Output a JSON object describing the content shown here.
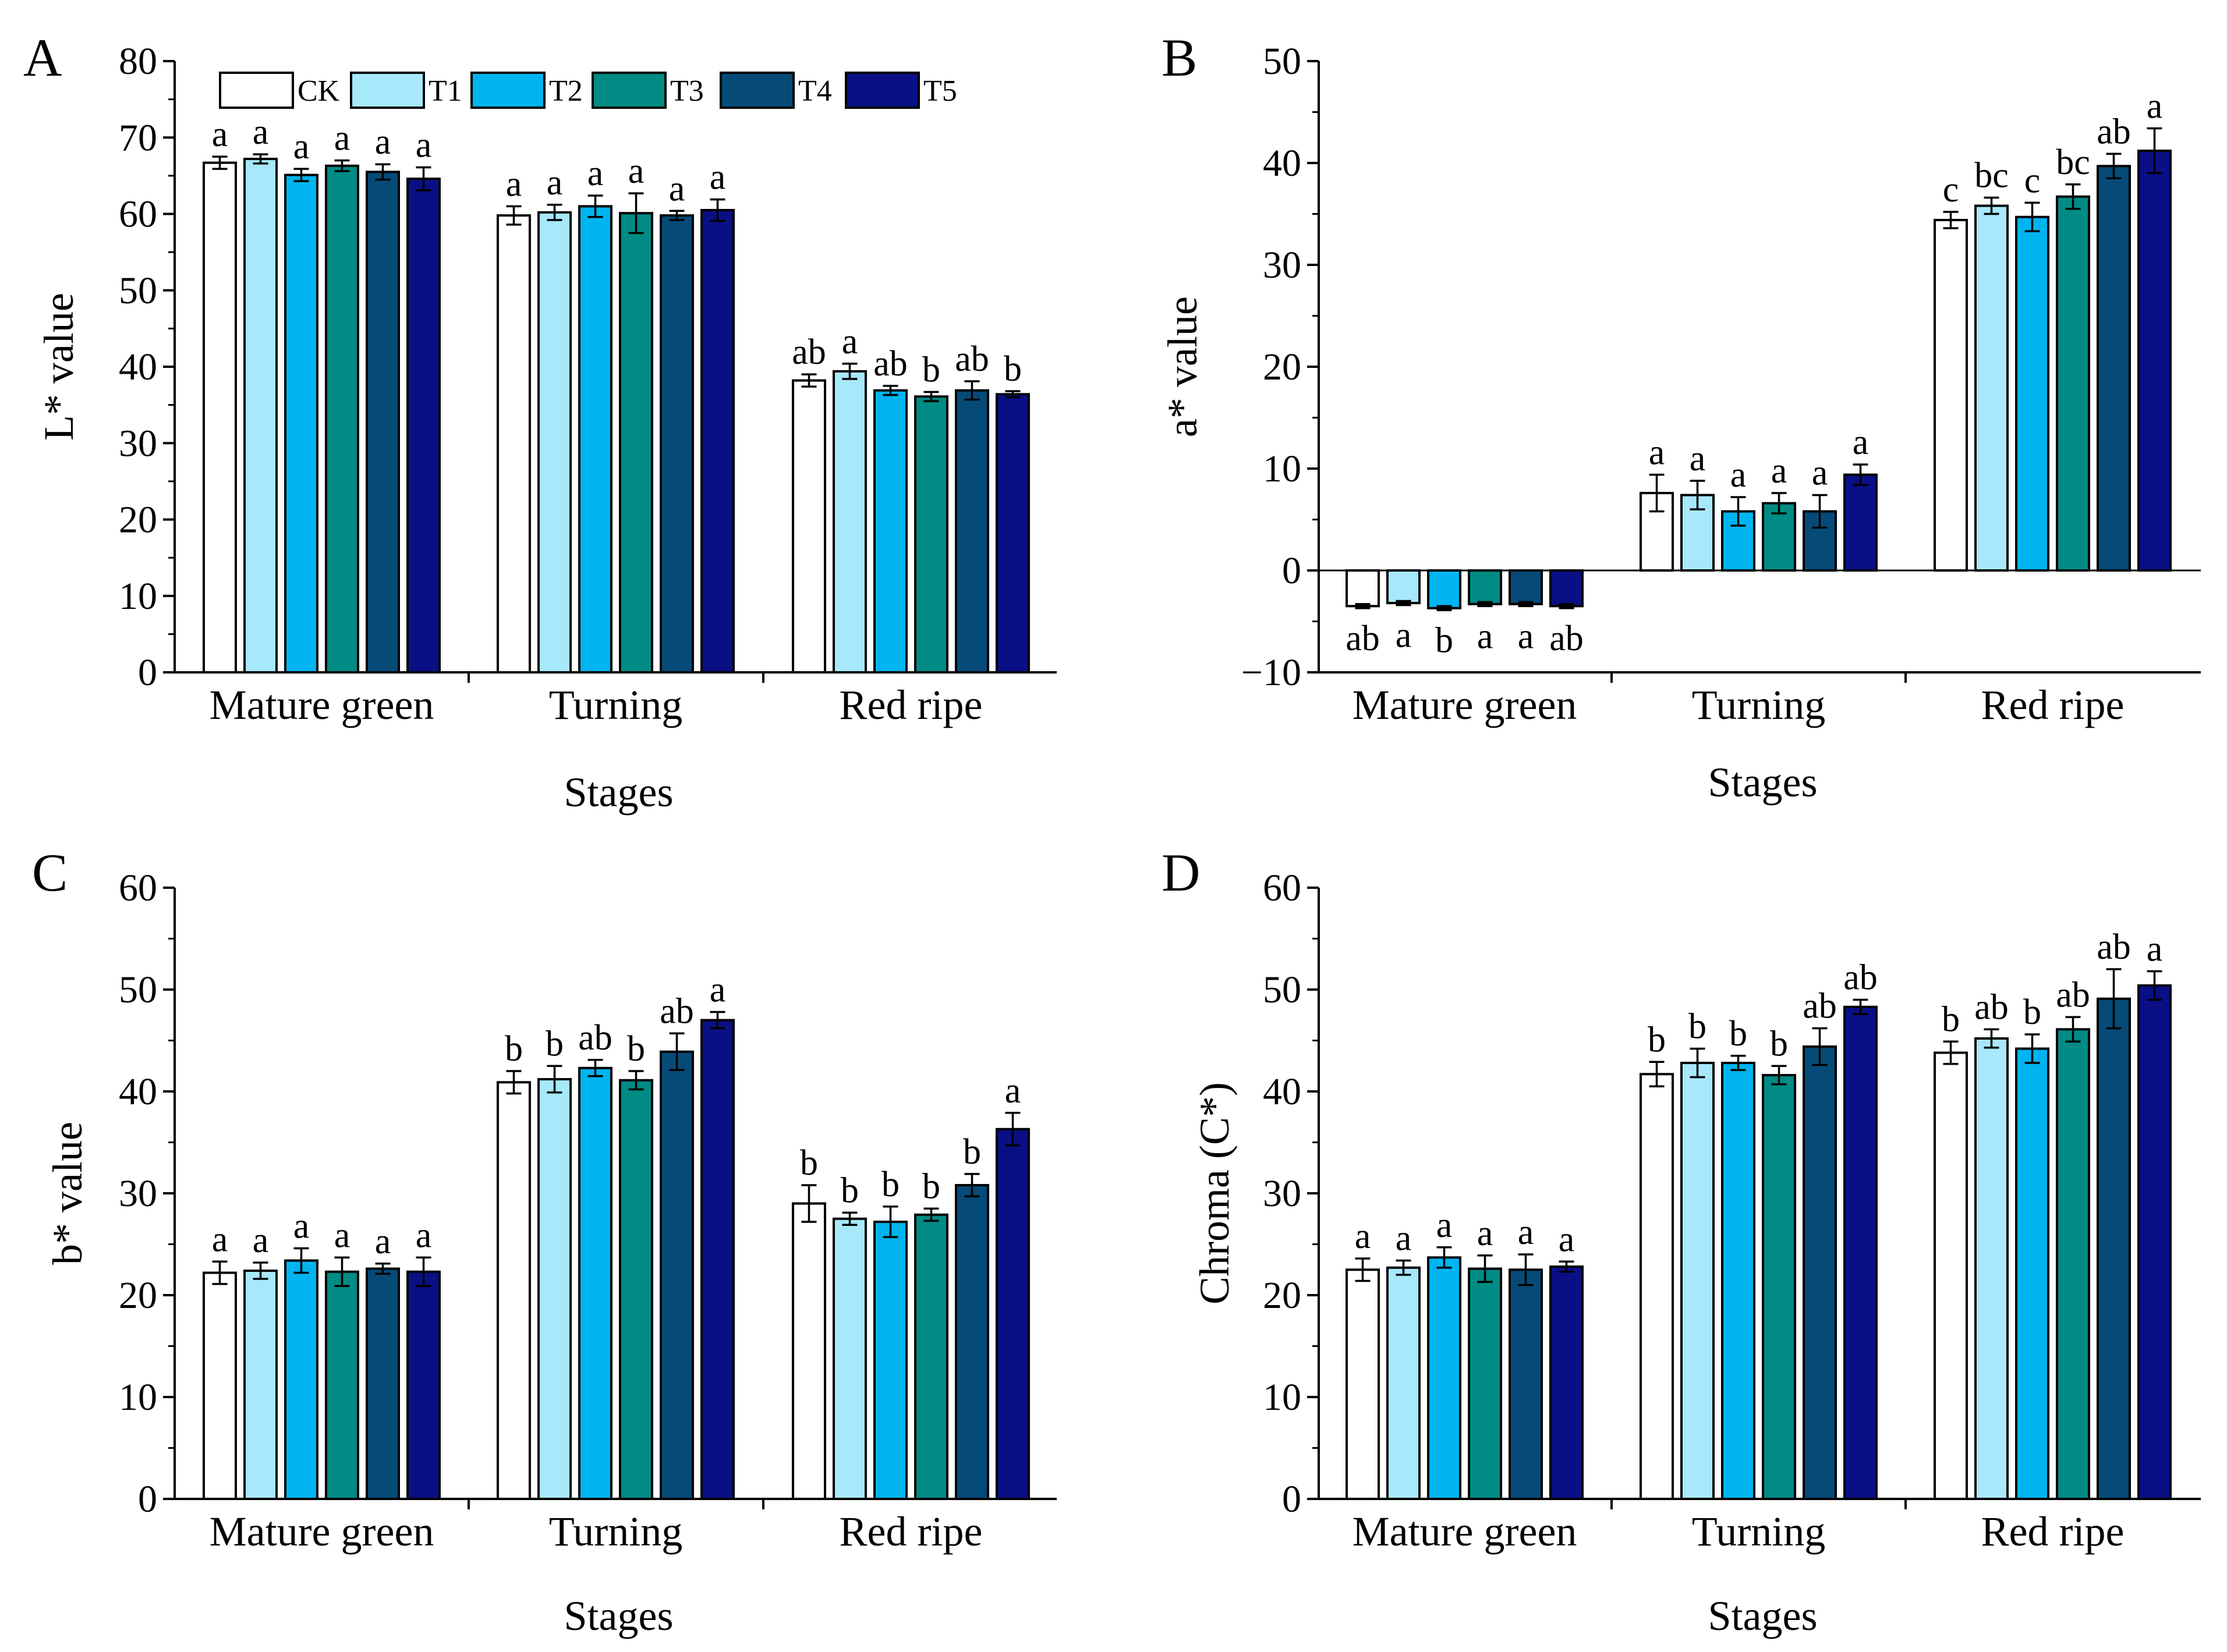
{
  "colors": {
    "CK": "#ffffff",
    "T1": "#a8e8fb",
    "T2": "#00b4f0",
    "T3": "#008b84",
    "T4": "#064a78",
    "T5": "#0a0f85",
    "stroke": "#000000"
  },
  "legend": [
    "CK",
    "T1",
    "T2",
    "T3",
    "T4",
    "T5"
  ],
  "chart_data": [
    {
      "panel": "A",
      "type": "bar",
      "ylabel": "L* value",
      "xlabel": "Stages",
      "ylim": [
        0,
        80
      ],
      "yticks": [
        0,
        10,
        20,
        30,
        40,
        50,
        60,
        70,
        80
      ],
      "categories": [
        "Mature green",
        "Turning",
        "Red ripe"
      ],
      "series": [
        {
          "name": "CK",
          "values": [
            66.7,
            59.8,
            38.2
          ],
          "errors": [
            0.8,
            1.2,
            0.8
          ],
          "labels": [
            "a",
            "a",
            "ab"
          ]
        },
        {
          "name": "T1",
          "values": [
            67.2,
            60.2,
            39.4
          ],
          "errors": [
            0.6,
            1.0,
            1.0
          ],
          "labels": [
            "a",
            "a",
            "a"
          ]
        },
        {
          "name": "T2",
          "values": [
            65.1,
            61.0,
            36.9
          ],
          "errors": [
            0.8,
            1.4,
            0.6
          ],
          "labels": [
            "a",
            "a",
            "ab"
          ]
        },
        {
          "name": "T3",
          "values": [
            66.3,
            60.1,
            36.1
          ],
          "errors": [
            0.7,
            2.6,
            0.6
          ],
          "labels": [
            "a",
            "a",
            "b"
          ]
        },
        {
          "name": "T4",
          "values": [
            65.5,
            59.8,
            36.9
          ],
          "errors": [
            1.0,
            0.6,
            1.2
          ],
          "labels": [
            "a",
            "a",
            "ab"
          ]
        },
        {
          "name": "T5",
          "values": [
            64.6,
            60.5,
            36.4
          ],
          "errors": [
            1.5,
            1.4,
            0.4
          ],
          "labels": [
            "a",
            "a",
            "b"
          ]
        }
      ]
    },
    {
      "panel": "B",
      "type": "bar",
      "ylabel": "a* value",
      "xlabel": "Stages",
      "ylim": [
        -10,
        50
      ],
      "yticks": [
        -10,
        0,
        10,
        20,
        30,
        40,
        50
      ],
      "ytick_labels": [
        "−10",
        "0",
        "10",
        "20",
        "30",
        "40",
        "50"
      ],
      "categories": [
        "Mature green",
        "Turning",
        "Red ripe"
      ],
      "series": [
        {
          "name": "CK",
          "values": [
            -3.5,
            7.6,
            34.4
          ],
          "errors": [
            0.2,
            1.8,
            0.8
          ],
          "labels": [
            "ab",
            "a",
            "c"
          ]
        },
        {
          "name": "T1",
          "values": [
            -3.2,
            7.4,
            35.8
          ],
          "errors": [
            0.2,
            1.4,
            0.8
          ],
          "labels": [
            "a",
            "a",
            "bc"
          ]
        },
        {
          "name": "T2",
          "values": [
            -3.7,
            5.8,
            34.7
          ],
          "errors": [
            0.2,
            1.4,
            1.4
          ],
          "labels": [
            "b",
            "a",
            "c"
          ]
        },
        {
          "name": "T3",
          "values": [
            -3.3,
            6.6,
            36.7
          ],
          "errors": [
            0.2,
            1.0,
            1.2
          ],
          "labels": [
            "a",
            "a",
            "bc"
          ]
        },
        {
          "name": "T4",
          "values": [
            -3.3,
            5.8,
            39.7
          ],
          "errors": [
            0.2,
            1.6,
            1.2
          ],
          "labels": [
            "a",
            "a",
            "ab"
          ]
        },
        {
          "name": "T5",
          "values": [
            -3.5,
            9.4,
            41.2
          ],
          "errors": [
            0.2,
            1.0,
            2.2
          ],
          "labels": [
            "ab",
            "a",
            "a"
          ]
        }
      ]
    },
    {
      "panel": "C",
      "type": "bar",
      "ylabel": "b* value",
      "xlabel": "Stages",
      "ylim": [
        0,
        60
      ],
      "yticks": [
        0,
        10,
        20,
        30,
        40,
        50,
        60
      ],
      "categories": [
        "Mature green",
        "Turning",
        "Red ripe"
      ],
      "series": [
        {
          "name": "CK",
          "values": [
            22.2,
            40.9,
            29.0
          ],
          "errors": [
            1.1,
            1.1,
            1.8
          ],
          "labels": [
            "a",
            "b",
            "b"
          ]
        },
        {
          "name": "T1",
          "values": [
            22.4,
            41.2,
            27.5
          ],
          "errors": [
            0.8,
            1.3,
            0.6
          ],
          "labels": [
            "a",
            "b",
            "b"
          ]
        },
        {
          "name": "T2",
          "values": [
            23.4,
            42.3,
            27.2
          ],
          "errors": [
            1.2,
            0.8,
            1.5
          ],
          "labels": [
            "a",
            "ab",
            "b"
          ]
        },
        {
          "name": "T3",
          "values": [
            22.3,
            41.1,
            27.9
          ],
          "errors": [
            1.4,
            0.9,
            0.6
          ],
          "labels": [
            "a",
            "b",
            "b"
          ]
        },
        {
          "name": "T4",
          "values": [
            22.6,
            43.9,
            30.8
          ],
          "errors": [
            0.5,
            1.8,
            1.1
          ],
          "labels": [
            "a",
            "ab",
            "b"
          ]
        },
        {
          "name": "T5",
          "values": [
            22.3,
            47.0,
            36.3
          ],
          "errors": [
            1.4,
            0.8,
            1.6
          ],
          "labels": [
            "a",
            "a",
            "a"
          ]
        }
      ]
    },
    {
      "panel": "D",
      "type": "bar",
      "ylabel": "Chroma (C*)",
      "xlabel": "Stages",
      "ylim": [
        0,
        60
      ],
      "yticks": [
        0,
        10,
        20,
        30,
        40,
        50,
        60
      ],
      "categories": [
        "Mature green",
        "Turning",
        "Red ripe"
      ],
      "series": [
        {
          "name": "CK",
          "values": [
            22.5,
            41.7,
            43.8
          ],
          "errors": [
            1.1,
            1.2,
            1.1
          ],
          "labels": [
            "a",
            "b",
            "b"
          ]
        },
        {
          "name": "T1",
          "values": [
            22.7,
            42.8,
            45.2
          ],
          "errors": [
            0.7,
            1.4,
            0.9
          ],
          "labels": [
            "a",
            "b",
            "ab"
          ]
        },
        {
          "name": "T2",
          "values": [
            23.7,
            42.8,
            44.2
          ],
          "errors": [
            1.0,
            0.7,
            1.4
          ],
          "labels": [
            "a",
            "b",
            "b"
          ]
        },
        {
          "name": "T3",
          "values": [
            22.6,
            41.6,
            46.1
          ],
          "errors": [
            1.3,
            0.9,
            1.2
          ],
          "labels": [
            "a",
            "b",
            "ab"
          ]
        },
        {
          "name": "T4",
          "values": [
            22.5,
            44.4,
            49.1
          ],
          "errors": [
            1.5,
            1.8,
            2.9
          ],
          "labels": [
            "a",
            "ab",
            "ab"
          ]
        },
        {
          "name": "T5",
          "values": [
            22.8,
            48.3,
            50.4
          ],
          "errors": [
            0.5,
            0.7,
            1.4
          ],
          "labels": [
            "a",
            "ab",
            "a"
          ]
        }
      ]
    }
  ]
}
